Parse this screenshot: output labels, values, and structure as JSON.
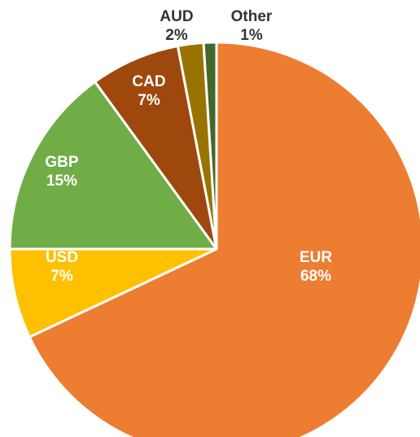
{
  "chart_data": {
    "type": "pie",
    "title": "",
    "start_angle_deg": 0,
    "direction": "clockwise",
    "slice_border_color": "#ffffff",
    "slices": [
      {
        "name": "EUR",
        "value": 68,
        "value_label": "68%",
        "color": "#ED7D31",
        "label_color": "#ffffff",
        "label_position": "inside"
      },
      {
        "name": "USD",
        "value": 7,
        "value_label": "7%",
        "color": "#FFC000",
        "label_color": "#ffffff",
        "label_position": "inside"
      },
      {
        "name": "GBP",
        "value": 15,
        "value_label": "15%",
        "color": "#70AD47",
        "label_color": "#ffffff",
        "label_position": "inside"
      },
      {
        "name": "CAD",
        "value": 7,
        "value_label": "7%",
        "color": "#9E480E",
        "label_color": "#ffffff",
        "label_position": "inside"
      },
      {
        "name": "AUD",
        "value": 2,
        "value_label": "2%",
        "color": "#997300",
        "label_color": "#333333",
        "label_position": "outside"
      },
      {
        "name": "Other",
        "value": 1,
        "value_label": "1%",
        "color": "#43682B",
        "label_color": "#333333",
        "label_position": "outside"
      }
    ]
  }
}
